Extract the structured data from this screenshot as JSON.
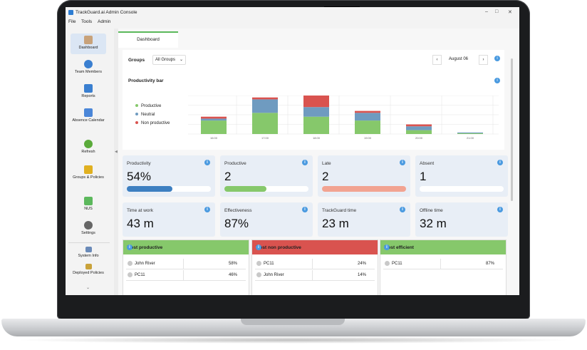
{
  "window": {
    "title": "TrackGuard.ai Admin Console"
  },
  "menu": [
    "File",
    "Tools",
    "Admin"
  ],
  "sidebar": {
    "items": [
      {
        "label": "Dashboard"
      },
      {
        "label": "Team Members"
      },
      {
        "label": "Reports"
      },
      {
        "label": "Absence Calendar"
      },
      {
        "label": "Refresh"
      },
      {
        "label": "Groups & Policies"
      },
      {
        "label": "NUS"
      },
      {
        "label": "Settings"
      },
      {
        "label": "System Info"
      },
      {
        "label": "Deployed Policies"
      }
    ]
  },
  "tab": {
    "label": "Dashboard"
  },
  "filters": {
    "groups_label": "Groups",
    "groups_value": "All Groups",
    "date": "August 06"
  },
  "chart": {
    "title": "Productivity bar",
    "legend": [
      {
        "name": "Productive",
        "color": "#86c86b"
      },
      {
        "name": "Neutral",
        "color": "#6f9bc0"
      },
      {
        "name": "Non productive",
        "color": "#d9534f"
      }
    ]
  },
  "chart_data": {
    "type": "bar",
    "title": "Productivity bar",
    "categories": [
      "16:00",
      "17:00",
      "18:00",
      "19:00",
      "20:00",
      "21:00"
    ],
    "series": [
      {
        "name": "Productive",
        "values": [
          0.35,
          0.55,
          0.45,
          0.35,
          0.1,
          0.02
        ]
      },
      {
        "name": "Neutral",
        "values": [
          0.05,
          0.35,
          0.25,
          0.2,
          0.1,
          0.02
        ]
      },
      {
        "name": "Non productive",
        "values": [
          0.05,
          0.05,
          0.3,
          0.05,
          0.05,
          0.0
        ]
      }
    ],
    "ylim": [
      0,
      1
    ],
    "legend_position": "left",
    "grid": true
  },
  "cards": [
    {
      "label": "Productivity",
      "value": "54%",
      "bar_color": "#3d7fc1",
      "fill": 0.54
    },
    {
      "label": "Productive",
      "value": "2",
      "bar_color": "#86c86b",
      "fill": 0.5
    },
    {
      "label": "Late",
      "value": "2",
      "bar_color": "#f2a391",
      "fill": 1.0
    },
    {
      "label": "Absent",
      "value": "1",
      "bar_color": "#ffffff",
      "fill": 0.0
    },
    {
      "label": "Time at work",
      "value": "43 m"
    },
    {
      "label": "Effectiveness",
      "value": "87%"
    },
    {
      "label": "TrackGuard time",
      "value": "23 m"
    },
    {
      "label": "Offline time",
      "value": "32 m"
    }
  ],
  "lists": [
    {
      "title": "Most productive",
      "color": "#86c86b",
      "rows": [
        {
          "name": "John River",
          "pct": "58%"
        },
        {
          "name": "PC11",
          "pct": "46%"
        }
      ]
    },
    {
      "title": "Most non productive",
      "color": "#d9534f",
      "rows": [
        {
          "name": "PC11",
          "pct": "24%"
        },
        {
          "name": "John River",
          "pct": "14%"
        }
      ]
    },
    {
      "title": "Most efficient",
      "color": "#86c86b",
      "rows": [
        {
          "name": "PC11",
          "pct": "87%"
        }
      ]
    }
  ]
}
